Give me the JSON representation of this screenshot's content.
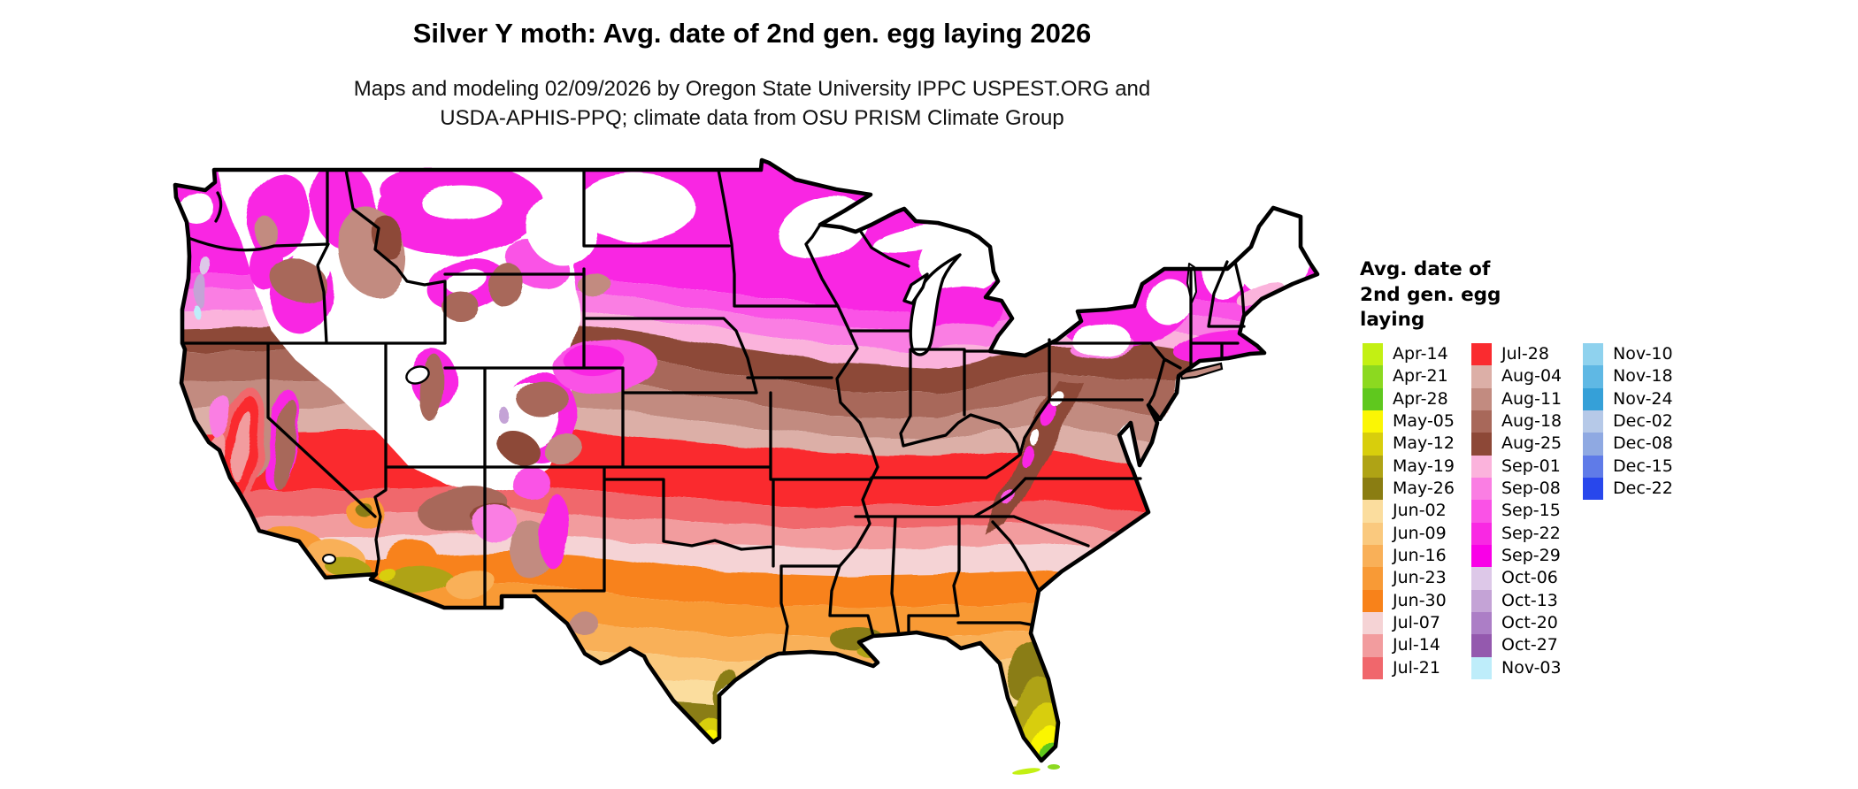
{
  "title": "Silver Y moth: Avg. date of 2nd gen. egg laying 2026",
  "subtitle_line1": "Maps and modeling 02/09/2026 by Oregon State University IPPC USPEST.ORG and",
  "subtitle_line2": "USDA-APHIS-PPQ; climate data from OSU PRISM Climate Group",
  "legend": {
    "title_lines": [
      "Avg. date of",
      "2nd gen. egg",
      "laying"
    ],
    "columns": [
      [
        "Apr-14",
        "Apr-21",
        "Apr-28",
        "May-05",
        "May-12",
        "May-19",
        "May-26",
        "Jun-02",
        "Jun-09",
        "Jun-16",
        "Jun-23",
        "Jun-30",
        "Jul-07",
        "Jul-14",
        "Jul-21"
      ],
      [
        "Jul-28",
        "Aug-04",
        "Aug-11",
        "Aug-18",
        "Aug-25",
        "Sep-01",
        "Sep-08",
        "Sep-15",
        "Sep-22",
        "Sep-29",
        "Oct-06",
        "Oct-13",
        "Oct-20",
        "Oct-27",
        "Nov-03"
      ],
      [
        "Nov-10",
        "Nov-18",
        "Nov-24",
        "Dec-02",
        "Dec-08",
        "Dec-15",
        "Dec-22"
      ]
    ]
  },
  "palette": {
    "Apr-14": "#C3F013",
    "Apr-21": "#8CD920",
    "Apr-28": "#5FC81E",
    "May-05": "#FBF604",
    "May-12": "#D8CE0C",
    "May-19": "#AFA315",
    "May-26": "#8A7D12",
    "Jun-02": "#FBDD9E",
    "Jun-09": "#FAC97E",
    "Jun-16": "#F9B058",
    "Jun-23": "#F89A36",
    "Jun-30": "#F8821A",
    "Jul-07": "#F5D3D5",
    "Jul-14": "#F29C9E",
    "Jul-21": "#F0676C",
    "Jul-28": "#FA2B2F",
    "Aug-04": "#DCAFA7",
    "Aug-11": "#C28B80",
    "Aug-18": "#A8685A",
    "Aug-25": "#8D4837",
    "Sep-01": "#FBB3DC",
    "Sep-08": "#FA7EE3",
    "Sep-15": "#FA52E6",
    "Sep-22": "#F928E3",
    "Sep-29": "#F900E7",
    "Oct-06": "#DDC8E8",
    "Oct-13": "#C4A3D6",
    "Oct-20": "#AC7EC6",
    "Oct-27": "#9459AE",
    "Nov-03": "#BEEDFA",
    "Nov-10": "#8FD2EE",
    "Nov-18": "#5FB8E4",
    "Nov-24": "#35A0D8",
    "Dec-02": "#B6C9E8",
    "Dec-08": "#8FA9E2",
    "Dec-15": "#5F7BE8",
    "Dec-22": "#2847EC"
  }
}
